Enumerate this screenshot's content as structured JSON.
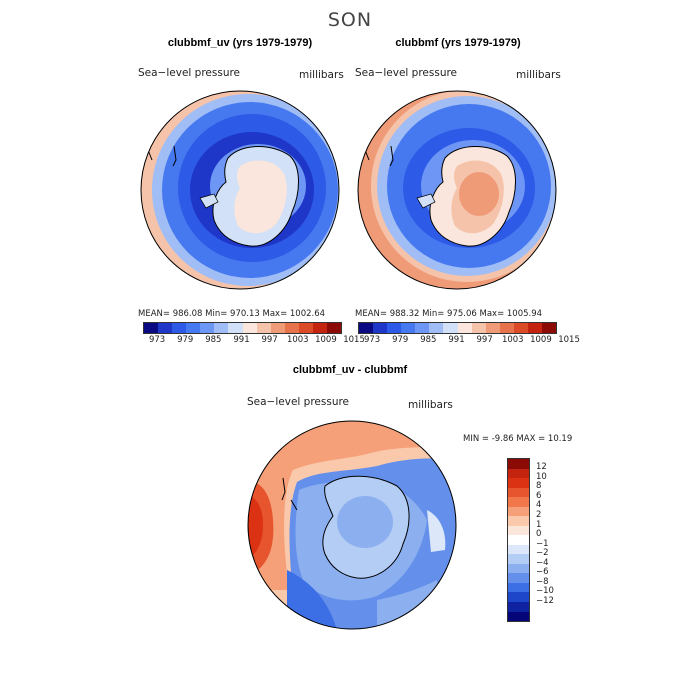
{
  "title": "SON",
  "panels": [
    {
      "title": "clubbmf_uv (yrs 1979-1979)",
      "left_label": "Sea−level pressure",
      "right_label": "millibars",
      "stats": "MEAN= 986.08   Min= 970.13   Max= 1002.64"
    },
    {
      "title": "clubbmf (yrs 1979-1979)",
      "left_label": "Sea−level pressure",
      "right_label": "millibars",
      "stats": "MEAN= 988.32   Min= 975.06   Max= 1005.94"
    },
    {
      "title": "clubbmf_uv - clubbmf",
      "left_label": "Sea−level pressure",
      "right_label": "millibars",
      "stats": "MIN =   -9.86 MAX =   10.19"
    }
  ],
  "colorbar_top": {
    "colors": [
      "#0a0a82",
      "#1e37c8",
      "#2d5ae6",
      "#4678f0",
      "#6e96f5",
      "#a0bef5",
      "#d2e1f8",
      "#fae6dc",
      "#f5c3aa",
      "#f09b78",
      "#e6734b",
      "#dc4b28",
      "#c3230f",
      "#8c0a05"
    ],
    "ticks": [
      "973",
      "979",
      "985",
      "991",
      "997",
      "1003",
      "1009",
      "1015"
    ]
  },
  "colorbar_diff": {
    "colors": [
      "#8c0a05",
      "#c3230f",
      "#dc3214",
      "#e6552d",
      "#f0784b",
      "#f5a078",
      "#fac8aa",
      "#fbe6dc",
      "#ffffff",
      "#dce8fa",
      "#b4cdf5",
      "#8cafef",
      "#6490eb",
      "#3c6ee6",
      "#1e46c8",
      "#0f23a0",
      "#05057a"
    ],
    "ticks": [
      "12",
      "10",
      "8",
      "6",
      "4",
      "2",
      "1",
      "0",
      "−1",
      "−2",
      "−4",
      "−6",
      "−8",
      "−10",
      "−12"
    ]
  },
  "chart_data": [
    {
      "type": "heatmap",
      "title": "clubbmf_uv (yrs 1979-1979)",
      "variable": "Sea-level pressure",
      "units": "millibars",
      "projection": "south polar stereographic",
      "mean": 986.08,
      "min": 970.13,
      "max": 1002.64,
      "levels": [
        973,
        979,
        985,
        991,
        997,
        1003,
        1009,
        1015
      ]
    },
    {
      "type": "heatmap",
      "title": "clubbmf (yrs 1979-1979)",
      "variable": "Sea-level pressure",
      "units": "millibars",
      "projection": "south polar stereographic",
      "mean": 988.32,
      "min": 975.06,
      "max": 1005.94,
      "levels": [
        973,
        979,
        985,
        991,
        997,
        1003,
        1009,
        1015
      ]
    },
    {
      "type": "heatmap",
      "title": "clubbmf_uv - clubbmf",
      "variable": "Sea-level pressure",
      "units": "millibars",
      "projection": "south polar stereographic",
      "min": -9.86,
      "max": 10.19,
      "levels": [
        -12,
        -10,
        -8,
        -6,
        -4,
        -2,
        -1,
        0,
        1,
        2,
        4,
        6,
        8,
        10,
        12
      ]
    }
  ]
}
